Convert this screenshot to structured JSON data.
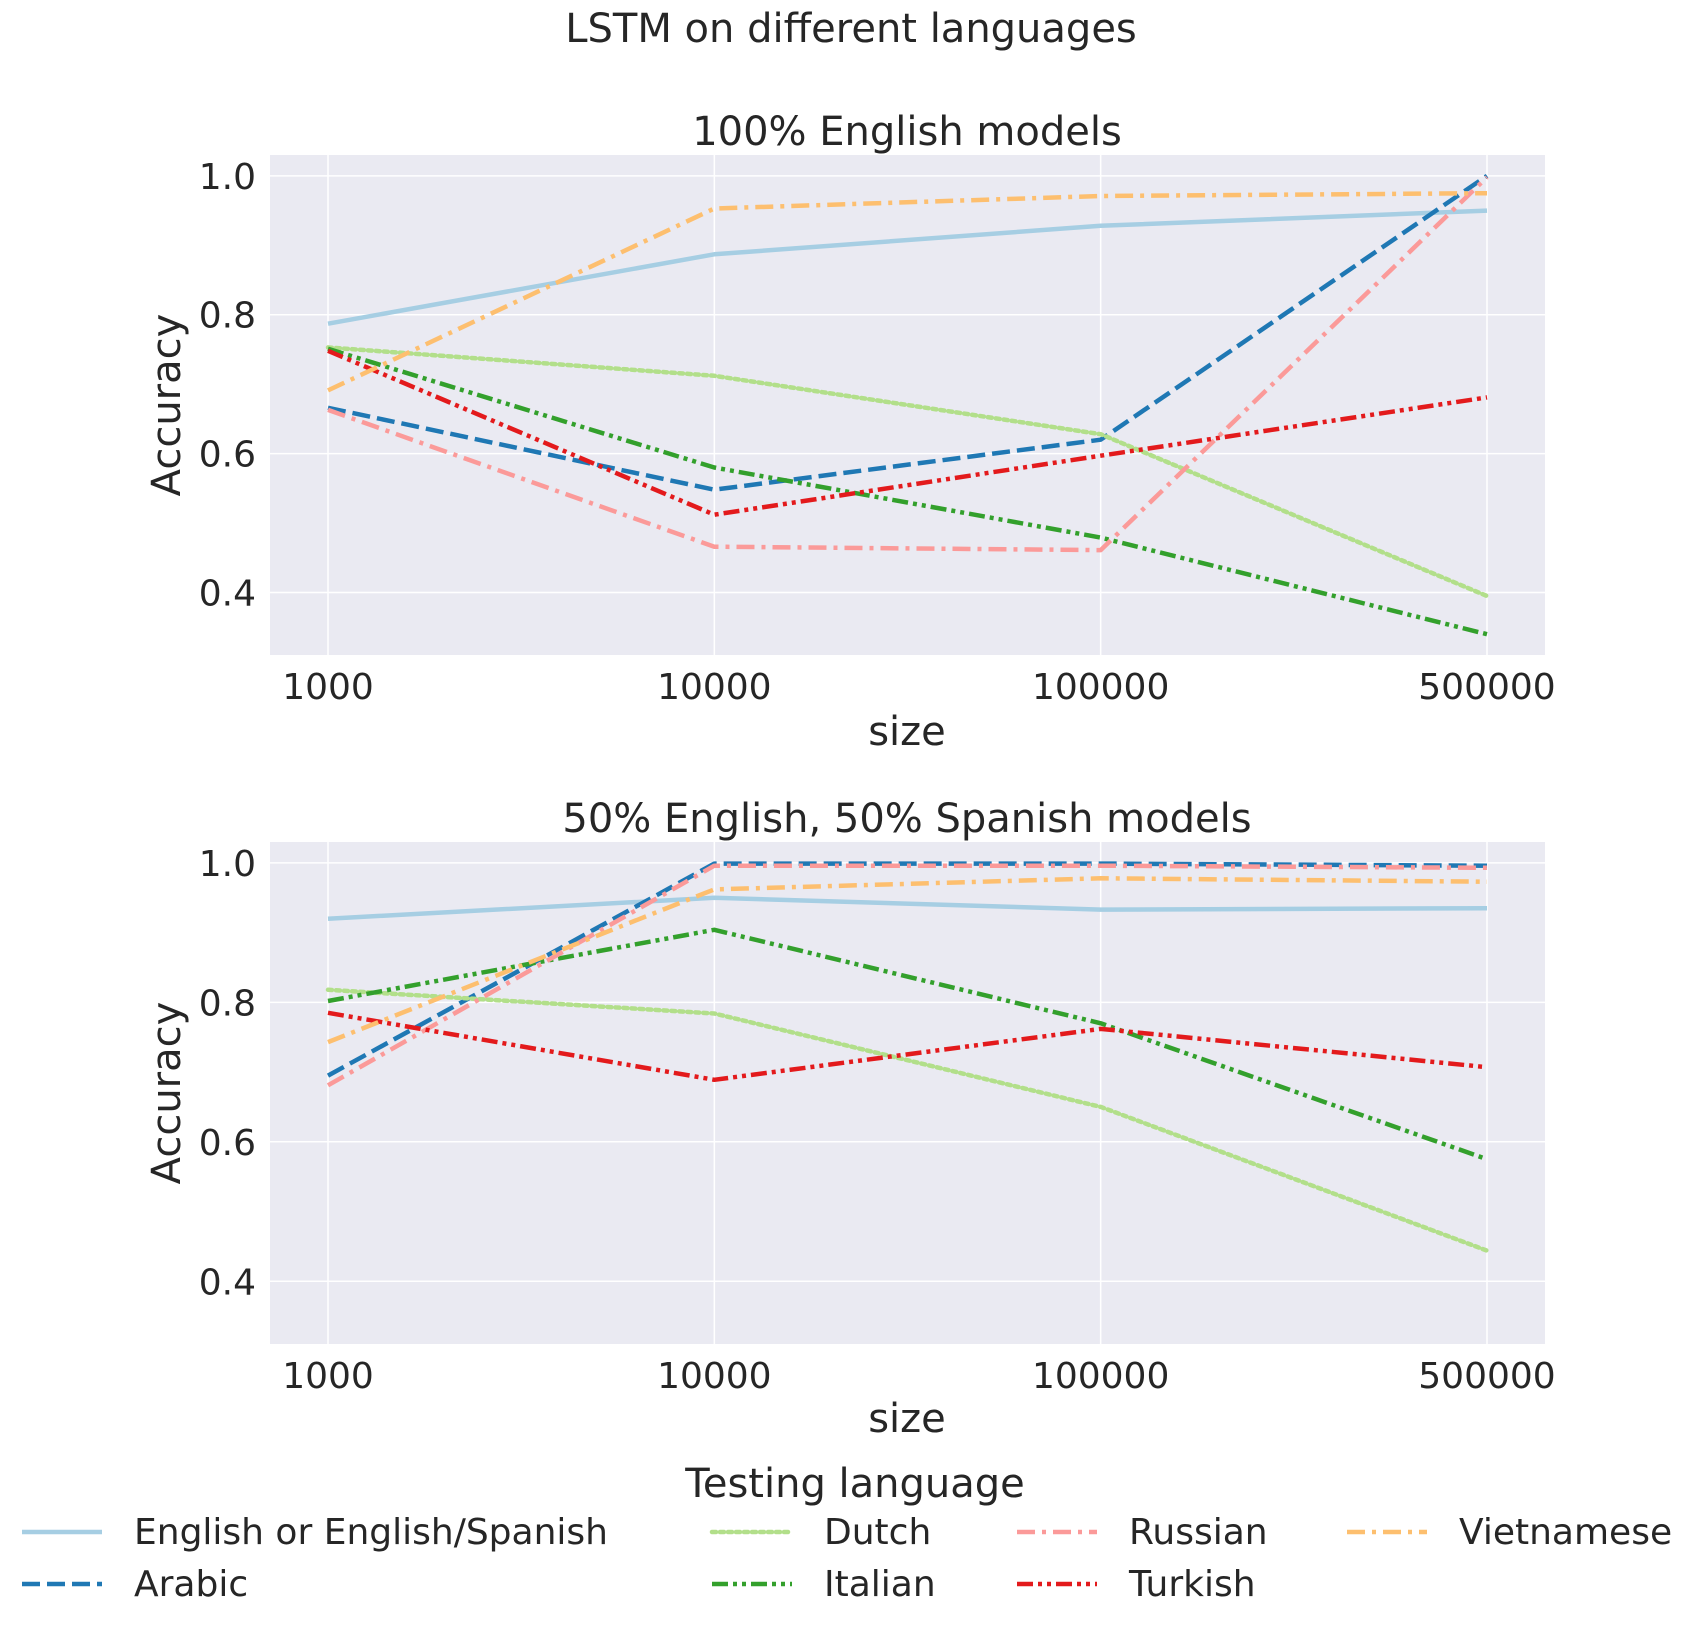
{
  "title": "LSTM on different languages",
  "colors": {
    "background": "#eaeaf2",
    "grid": "#ffffff",
    "text": "#262626"
  },
  "legend": {
    "title": "Testing language",
    "placement": "bottom-center",
    "ncol": 4
  },
  "series_styles": [
    {
      "name": "English or English/Spanish",
      "color": "#a6cee3",
      "dash": "solid"
    },
    {
      "name": "Arabic",
      "color": "#1f78b4",
      "dash": "dashed"
    },
    {
      "name": "Dutch",
      "color": "#b2df8a",
      "dash": "dotted"
    },
    {
      "name": "Italian",
      "color": "#33a02c",
      "dash": "dashdotdot"
    },
    {
      "name": "Russian",
      "color": "#fb9a99",
      "dash": "dashdot"
    },
    {
      "name": "Turkish",
      "color": "#e31a1c",
      "dash": "dashdotdot"
    },
    {
      "name": "Vietnamese",
      "color": "#fdbf6f",
      "dash": "dashdot"
    }
  ],
  "chart_data": [
    {
      "type": "line",
      "title": "100% English models",
      "xlabel": "size",
      "ylabel": "Accuracy",
      "categories": [
        "1000",
        "10000",
        "100000",
        "500000"
      ],
      "ylim": [
        0.31,
        1.03
      ],
      "yticks": [
        "0.4",
        "0.6",
        "0.8",
        "1.0"
      ],
      "grid": true,
      "series": [
        {
          "name": "English or English/Spanish",
          "values": [
            0.787,
            0.887,
            0.928,
            0.95
          ]
        },
        {
          "name": "Arabic",
          "values": [
            0.666,
            0.548,
            0.62,
            1.0
          ]
        },
        {
          "name": "Dutch",
          "values": [
            0.753,
            0.712,
            0.628,
            0.395
          ]
        },
        {
          "name": "Italian",
          "values": [
            0.751,
            0.58,
            0.479,
            0.34
          ]
        },
        {
          "name": "Russian",
          "values": [
            0.663,
            0.466,
            0.461,
            0.998
          ]
        },
        {
          "name": "Turkish",
          "values": [
            0.748,
            0.512,
            0.597,
            0.681
          ]
        },
        {
          "name": "Vietnamese",
          "values": [
            0.691,
            0.953,
            0.971,
            0.975
          ]
        }
      ]
    },
    {
      "type": "line",
      "title": "50% English, 50% Spanish models",
      "xlabel": "size",
      "ylabel": "Accuracy",
      "categories": [
        "1000",
        "10000",
        "100000",
        "500000"
      ],
      "ylim": [
        0.31,
        1.03
      ],
      "yticks": [
        "0.4",
        "0.6",
        "0.8",
        "1.0"
      ],
      "grid": true,
      "series": [
        {
          "name": "English or English/Spanish",
          "values": [
            0.92,
            0.95,
            0.933,
            0.935
          ]
        },
        {
          "name": "Arabic",
          "values": [
            0.695,
            0.999,
            0.999,
            0.996
          ]
        },
        {
          "name": "Dutch",
          "values": [
            0.818,
            0.784,
            0.65,
            0.444
          ]
        },
        {
          "name": "Italian",
          "values": [
            0.802,
            0.904,
            0.77,
            0.575
          ]
        },
        {
          "name": "Russian",
          "values": [
            0.681,
            0.996,
            0.996,
            0.993
          ]
        },
        {
          "name": "Turkish",
          "values": [
            0.785,
            0.689,
            0.762,
            0.707
          ]
        },
        {
          "name": "Vietnamese",
          "values": [
            0.743,
            0.962,
            0.978,
            0.973
          ]
        }
      ]
    }
  ]
}
